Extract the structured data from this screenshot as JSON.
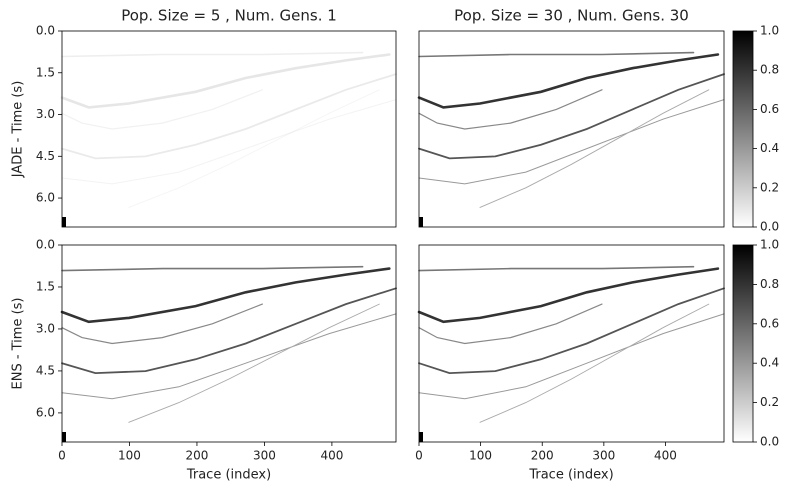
{
  "chart_data": [
    {
      "type": "image",
      "title": "Pop. Size = 5 , Num. Gens. 1",
      "ylabel": "JADE - Time (s)",
      "xlim": [
        0,
        495
      ],
      "ylim": [
        7.04,
        0
      ],
      "yticks": [
        {
          "value": 0,
          "label": "0.0"
        },
        {
          "value": 1.5,
          "label": "1.5"
        },
        {
          "value": 3,
          "label": "3.0"
        },
        {
          "value": 4.5,
          "label": "4.5"
        },
        {
          "value": 6,
          "label": "6.0"
        }
      ]
    },
    {
      "type": "image",
      "title": "Pop. Size = 30 , Num. Gens. 30",
      "xlim": [
        0,
        495
      ],
      "ylim": [
        7.04,
        0
      ]
    },
    {
      "type": "image",
      "ylabel": "ENS - Time (s)",
      "xlabel": "Trace (index)",
      "xlim": [
        0,
        495
      ],
      "ylim": [
        7.04,
        0
      ],
      "xticks": [
        0,
        100,
        200,
        300,
        400
      ],
      "yticks": [
        {
          "value": 0,
          "label": "0.0"
        },
        {
          "value": 1.5,
          "label": "1.5"
        },
        {
          "value": 3,
          "label": "3.0"
        },
        {
          "value": 4.5,
          "label": "4.5"
        },
        {
          "value": 6,
          "label": "6.0"
        }
      ]
    },
    {
      "type": "image",
      "xlabel": "Trace (index)",
      "xlim": [
        0,
        495
      ],
      "ylim": [
        7.04,
        0
      ],
      "xticks": [
        0,
        100,
        200,
        300,
        400
      ]
    },
    {
      "type": "colorbar",
      "colormap": [
        "#ffffff",
        "#000000"
      ],
      "ylim": [
        0,
        1
      ],
      "yticks": [
        {
          "value": 0,
          "label": "0.0"
        },
        {
          "value": 0.2,
          "label": "0.2"
        },
        {
          "value": 0.4,
          "label": "0.4"
        },
        {
          "value": 0.6,
          "label": "0.6"
        },
        {
          "value": 0.8,
          "label": "0.8"
        },
        {
          "value": 1,
          "label": "1.0"
        }
      ]
    },
    {
      "type": "colorbar",
      "colormap": [
        "#ffffff",
        "#000000"
      ],
      "ylim": [
        0,
        1
      ],
      "yticks": [
        {
          "value": 0,
          "label": "0.0"
        },
        {
          "value": 0.2,
          "label": "0.2"
        },
        {
          "value": 0.4,
          "label": "0.4"
        },
        {
          "value": 0.6,
          "label": "0.6"
        },
        {
          "value": 0.8,
          "label": "0.8"
        },
        {
          "value": 1,
          "label": "1.0"
        }
      ]
    }
  ]
}
